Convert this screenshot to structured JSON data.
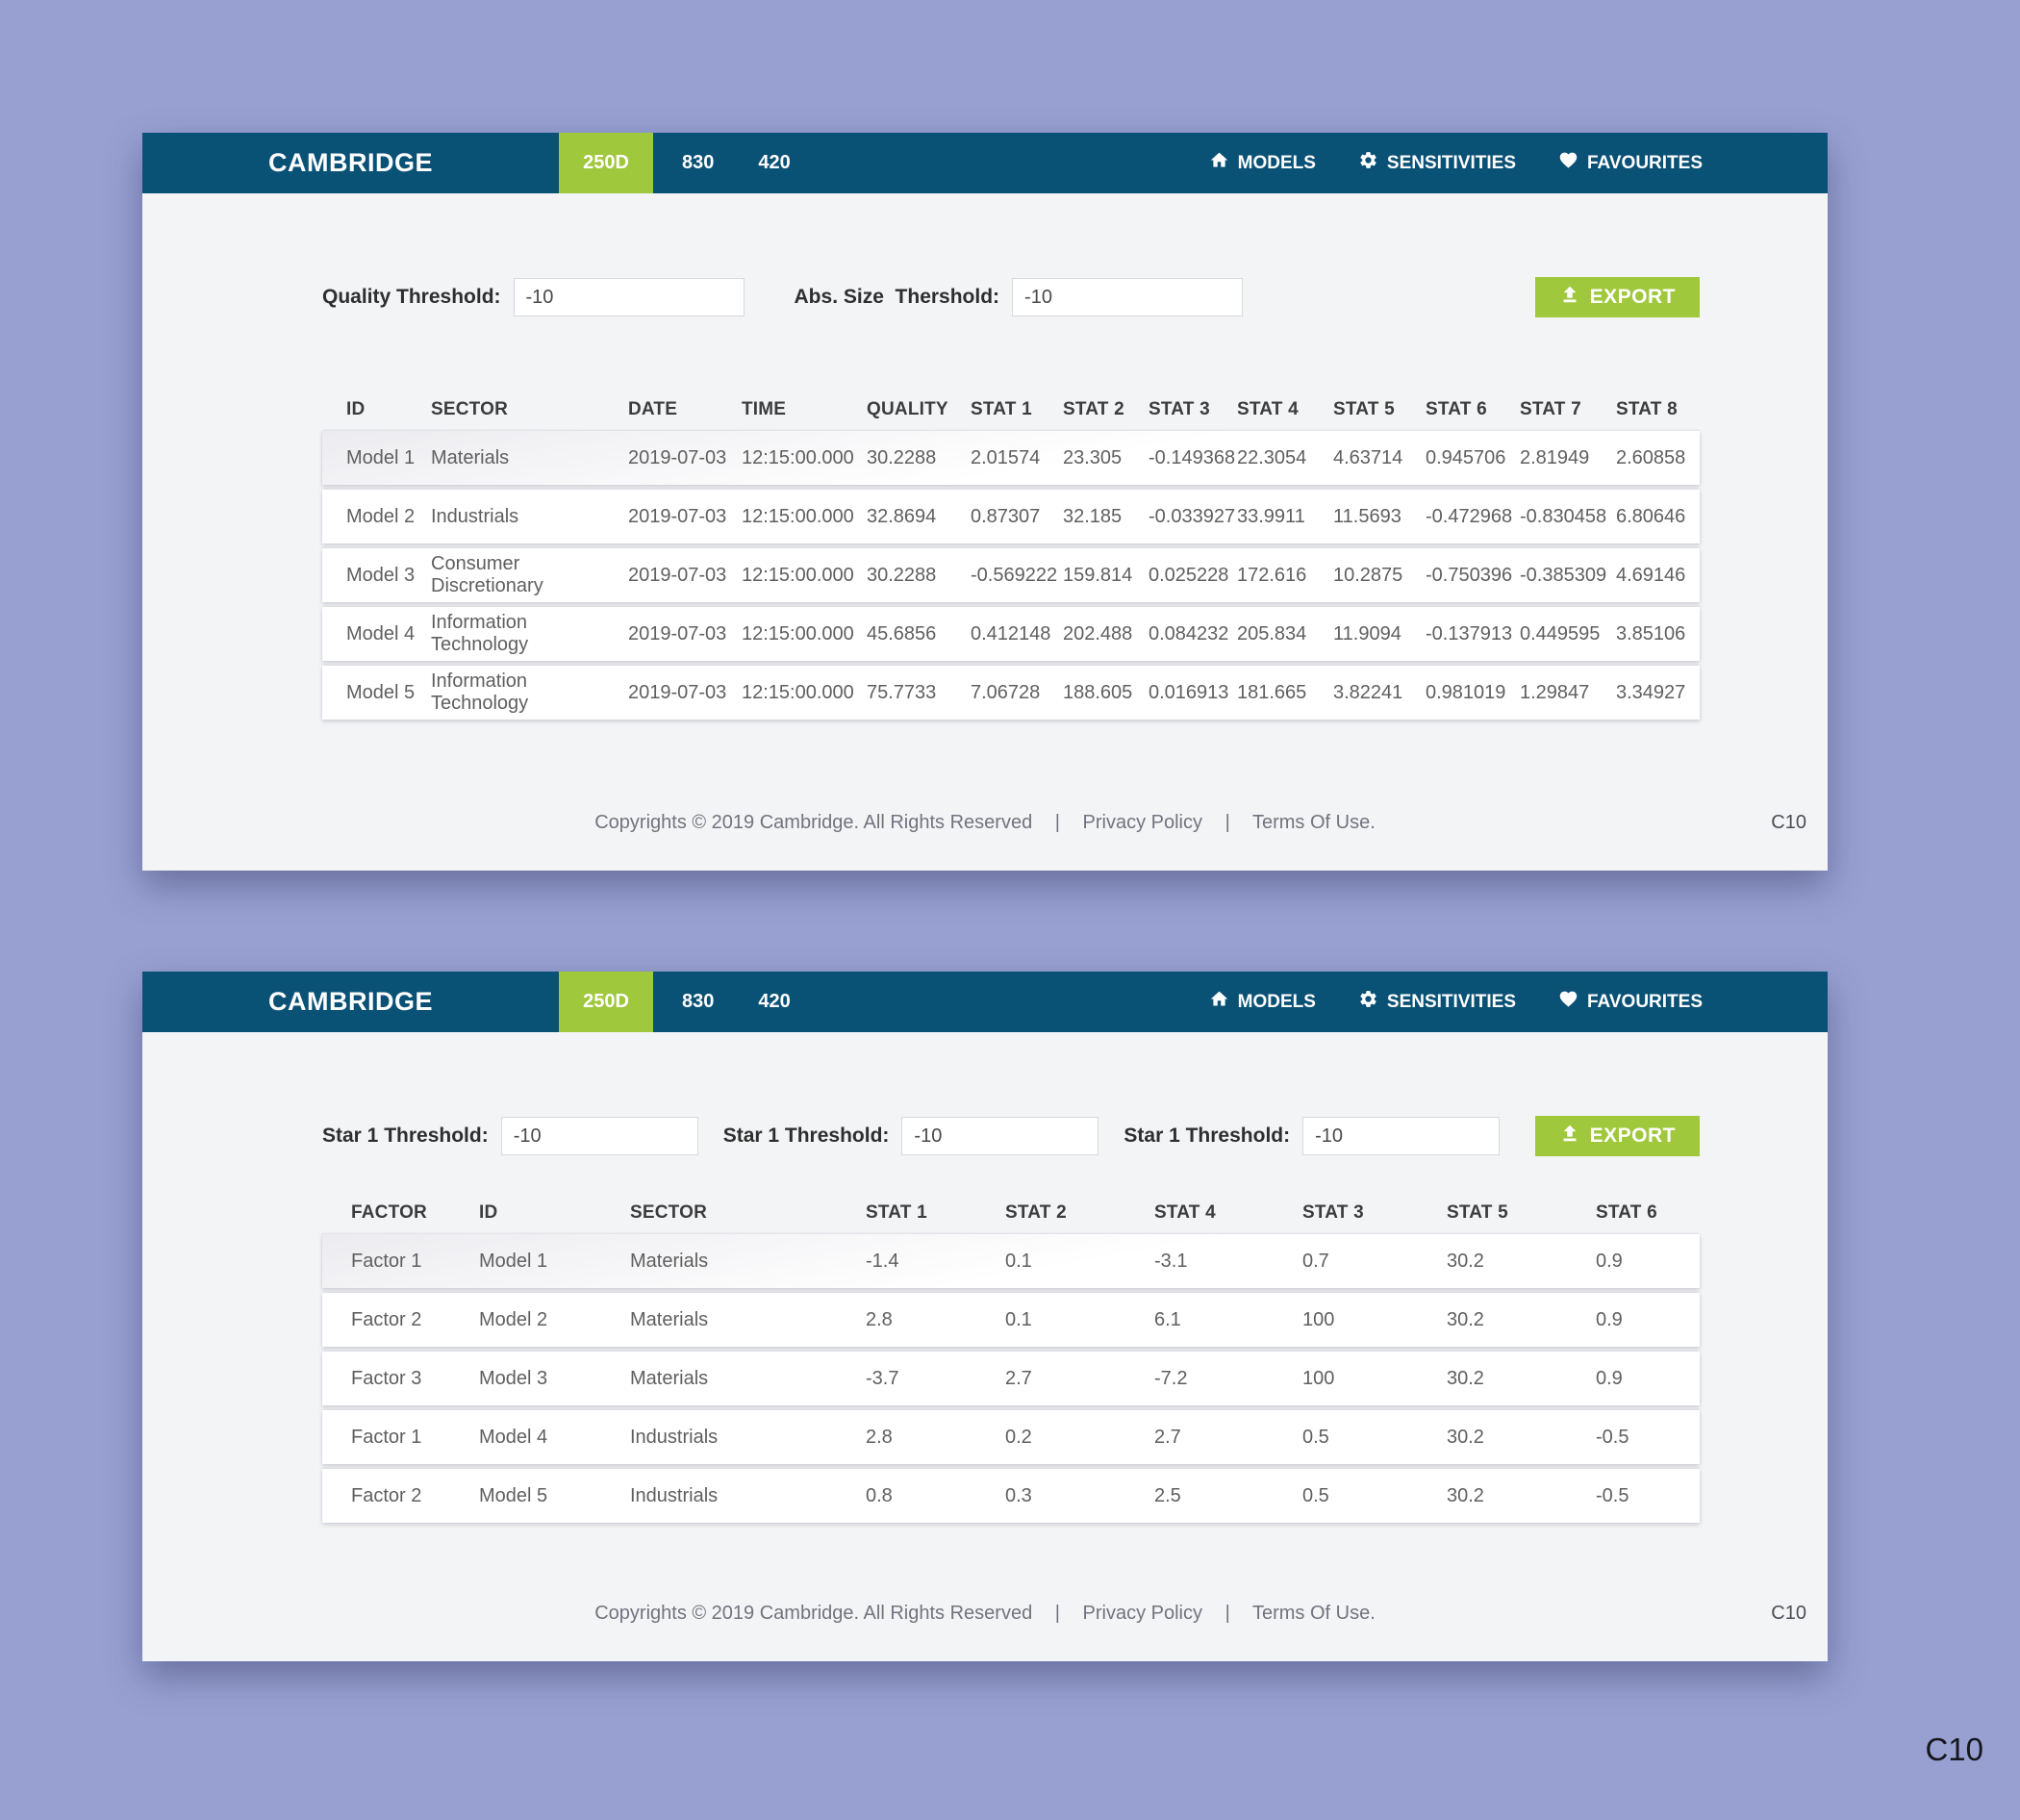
{
  "nav": {
    "brand": "CAMBRIDGE",
    "tab": "250D",
    "links": [
      "830",
      "420"
    ],
    "items": [
      {
        "icon": "home-icon",
        "label": "MODELS"
      },
      {
        "icon": "gear-icon",
        "label": "SENSITIVITIES"
      },
      {
        "icon": "heart-icon",
        "label": "FAVOURITES"
      }
    ],
    "colors": {
      "bar": "#0a5176",
      "accent_green": "#a0c83c"
    }
  },
  "panel1": {
    "filters": [
      {
        "label": "Quality Threshold:",
        "value": "-10"
      },
      {
        "label": "Abs. Size  Thershold:",
        "value": "-10"
      }
    ],
    "export_label": "EXPORT",
    "table": {
      "columns": [
        "ID",
        "SECTOR",
        "DATE",
        "TIME",
        "QUALITY",
        "STAT 1",
        "STAT 2",
        "STAT 3",
        "STAT 4",
        "STAT 5",
        "STAT 6",
        "STAT 7",
        "STAT 8"
      ],
      "rows": [
        [
          "Model 1",
          "Materials",
          "2019-07-03",
          "12:15:00.000",
          "30.2288",
          "2.01574",
          "23.305",
          "-0.149368",
          "22.3054",
          "4.63714",
          "0.945706",
          "2.81949",
          "2.60858"
        ],
        [
          "Model 2",
          "Industrials",
          "2019-07-03",
          "12:15:00.000",
          "32.8694",
          "0.87307",
          "32.185",
          "-0.033927",
          "33.9911",
          "11.5693",
          "-0.472968",
          "-0.830458",
          "6.80646"
        ],
        [
          "Model 3",
          "Consumer Discretionary",
          "2019-07-03",
          "12:15:00.000",
          "30.2288",
          "-0.569222",
          "159.814",
          "0.025228",
          "172.616",
          "10.2875",
          "-0.750396",
          "-0.385309",
          "4.69146"
        ],
        [
          "Model 4",
          "Information Technology",
          "2019-07-03",
          "12:15:00.000",
          "45.6856",
          "0.412148",
          "202.488",
          "0.084232",
          "205.834",
          "11.9094",
          "-0.137913",
          "0.449595",
          "3.85106"
        ],
        [
          "Model 5",
          "Information Technology",
          "2019-07-03",
          "12:15:00.000",
          "75.7733",
          "7.06728",
          "188.605",
          "0.016913",
          "181.665",
          "3.82241",
          "0.981019",
          "1.29847",
          "3.34927"
        ]
      ]
    }
  },
  "panel2": {
    "filters": [
      {
        "label": "Star 1 Threshold:",
        "value": "-10"
      },
      {
        "label": "Star 1 Threshold:",
        "value": "-10"
      },
      {
        "label": "Star 1 Threshold:",
        "value": "-10"
      }
    ],
    "export_label": "EXPORT",
    "table": {
      "columns": [
        "FACTOR",
        "ID",
        "SECTOR",
        "STAT 1",
        "STAT 2",
        "STAT 4",
        "STAT 3",
        "STAT 5",
        "STAT 6"
      ],
      "rows": [
        [
          "Factor 1",
          "Model 1",
          "Materials",
          "-1.4",
          "0.1",
          "-3.1",
          "0.7",
          "30.2",
          "0.9"
        ],
        [
          "Factor 2",
          "Model 2",
          "Materials",
          "2.8",
          "0.1",
          "6.1",
          "100",
          "30.2",
          "0.9"
        ],
        [
          "Factor 3",
          "Model 3",
          "Materials",
          "-3.7",
          "2.7",
          "-7.2",
          "100",
          "30.2",
          "0.9"
        ],
        [
          "Factor 1",
          "Model 4",
          "Industrials",
          "2.8",
          "0.2",
          "2.7",
          "0.5",
          "30.2",
          "-0.5"
        ],
        [
          "Factor 2",
          "Model 5",
          "Industrials",
          "0.8",
          "0.3",
          "2.5",
          "0.5",
          "30.2",
          "-0.5"
        ]
      ]
    }
  },
  "footer": {
    "copyright": "Copyrights © 2019 Cambridge.  All Rights Reserved",
    "divider": "|",
    "privacy": "Privacy Policy",
    "terms": "Terms Of Use.",
    "code": "C10"
  },
  "page": {
    "corner_label": "C10"
  }
}
